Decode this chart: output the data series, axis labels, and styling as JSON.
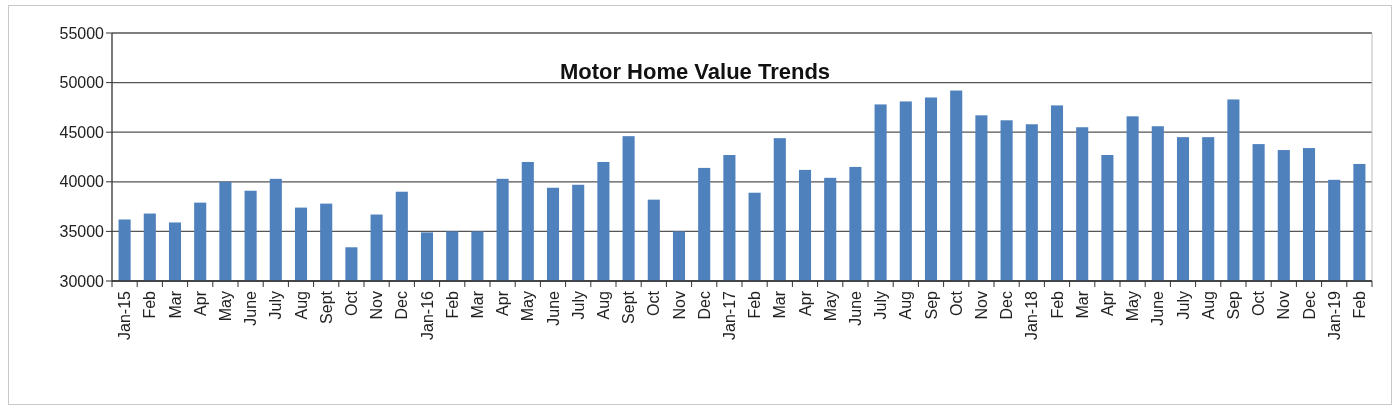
{
  "chart_data": {
    "type": "bar",
    "title": "Motor Home Value Trends",
    "categories": [
      "Jan-15",
      "Feb",
      "Mar",
      "Apr",
      "May",
      "June",
      "July",
      "Aug",
      "Sept",
      "Oct",
      "Nov",
      "Dec",
      "Jan-16",
      "Feb",
      "Mar",
      "Apr",
      "May",
      "June",
      "July",
      "Aug",
      "Sept",
      "Oct",
      "Nov",
      "Dec",
      "Jan-17",
      "Feb",
      "Mar",
      "Apr",
      "May",
      "June",
      "July",
      "Aug",
      "Sep",
      "Oct",
      "Nov",
      "Dec",
      "Jan-18",
      "Feb",
      "Mar",
      "Apr",
      "May",
      "June",
      "July",
      "Aug",
      "Sep",
      "Oct",
      "Nov",
      "Dec",
      "Jan-19",
      "Feb"
    ],
    "values": [
      36200,
      36800,
      35900,
      37900,
      40000,
      39100,
      40300,
      37400,
      37800,
      33400,
      36700,
      39000,
      34900,
      35000,
      35000,
      40300,
      42000,
      39400,
      39700,
      42000,
      44600,
      38200,
      35000,
      41400,
      42700,
      38900,
      44400,
      41200,
      40400,
      41500,
      47800,
      48100,
      48500,
      49200,
      46700,
      46200,
      45800,
      47700,
      45500,
      42700,
      46600,
      45600,
      44500,
      44500,
      48300,
      43800,
      43200,
      43400,
      40200,
      41800
    ],
    "color": "#4f81bd",
    "ylim": [
      30000,
      55000
    ],
    "yticks": [
      30000,
      35000,
      40000,
      45000,
      50000,
      55000
    ],
    "grid": "y"
  }
}
